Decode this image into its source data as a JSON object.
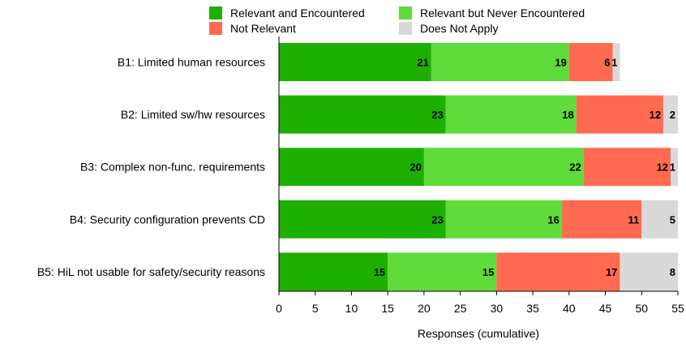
{
  "chart_data": {
    "type": "bar",
    "orientation": "horizontal",
    "stacked": true,
    "categories": [
      "B1: Limited human resources",
      "B2: Limited sw/hw resources",
      "B3: Complex non-func. requirements",
      "B4: Security configuration prevents CD",
      "B5: HiL not usable for safety/security reasons"
    ],
    "series": [
      {
        "name": "Relevant and Encountered",
        "color": "#1eb000",
        "values": [
          21,
          23,
          20,
          23,
          15
        ]
      },
      {
        "name": "Relevant but Never Encountered",
        "color": "#5fdb3a",
        "values": [
          19,
          18,
          22,
          16,
          15
        ]
      },
      {
        "name": "Not Relevant",
        "color": "#ff6a50",
        "values": [
          6,
          12,
          12,
          11,
          17
        ]
      },
      {
        "name": "Does Not Apply",
        "color": "#d9d9d9",
        "values": [
          1,
          2,
          1,
          5,
          8
        ]
      }
    ],
    "xlabel": "Responses (cumulative)",
    "xlim": [
      0,
      55
    ],
    "xticks": [
      0,
      5,
      10,
      15,
      20,
      25,
      30,
      35,
      40,
      45,
      50,
      55
    ],
    "legend_position": "top",
    "grid": false
  }
}
